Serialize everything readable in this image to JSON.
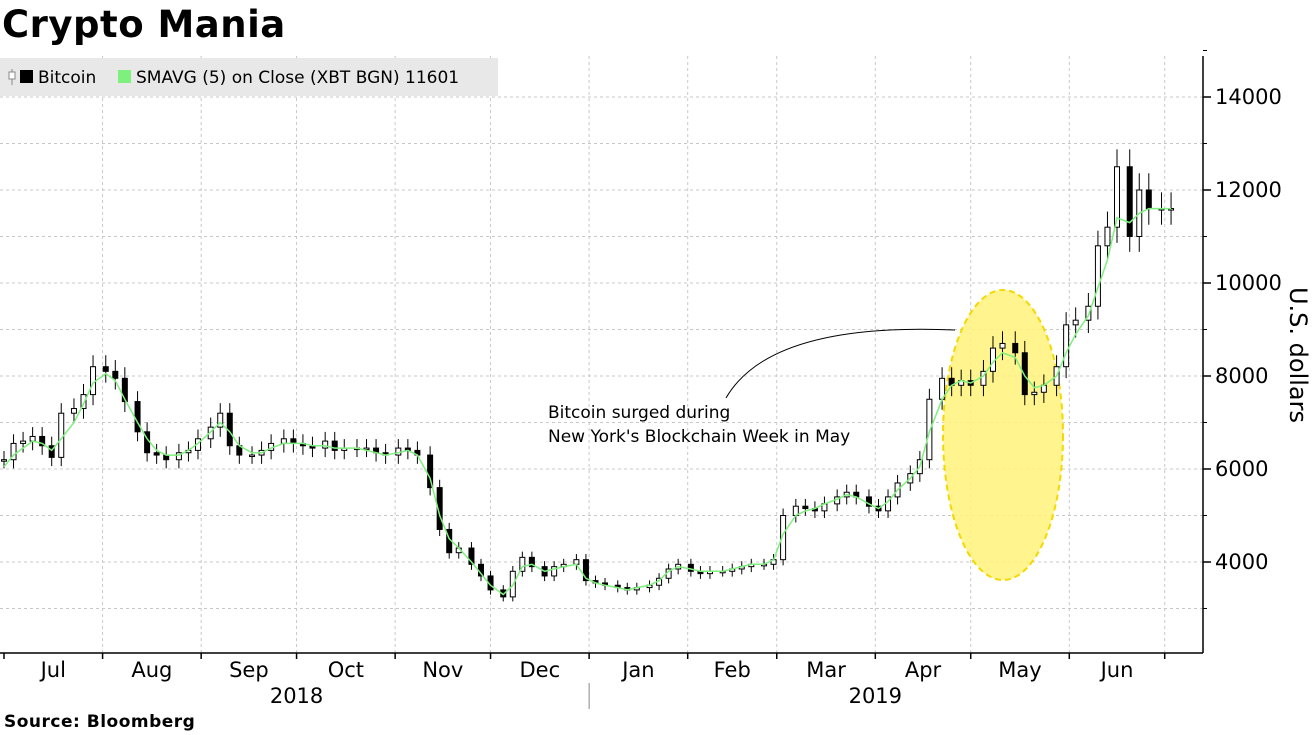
{
  "title": "Crypto Mania",
  "source": "Source: Bloomberg",
  "chart_data": {
    "type": "candlestick",
    "title": "Crypto Mania",
    "ylabel": "U.S. dollars",
    "ylim": [
      2200,
      15000
    ],
    "yticks": [
      4000,
      6000,
      8000,
      10000,
      12000,
      14000
    ],
    "grid": true,
    "legend": {
      "placement": "top-left",
      "entries": [
        {
          "label": "Bitcoin",
          "color": "#000000"
        },
        {
          "label": "SMAVG (5)  on Close (XBT BGN) 11601",
          "color": "#7ef07e"
        }
      ]
    },
    "months": [
      "Jul",
      "Aug",
      "Sep",
      "Oct",
      "Nov",
      "Dec",
      "Jan",
      "Feb",
      "Mar",
      "Apr",
      "May",
      "Jun"
    ],
    "years": [
      "2018",
      "2019"
    ],
    "annotation": {
      "lines": [
        "Bitcoin surged during",
        "New York's Blockchain Week in May"
      ],
      "highlight_color": "#fff27a"
    },
    "series": [
      {
        "name": "Bitcoin",
        "x": [
          0,
          3,
          6,
          9,
          12,
          15,
          18,
          22,
          25,
          28,
          32,
          35,
          38,
          42,
          45,
          48,
          51,
          55,
          58,
          61,
          65,
          68,
          71,
          74,
          78,
          81,
          84,
          88,
          91,
          94,
          97,
          101,
          104,
          107,
          111,
          114,
          117,
          120,
          124,
          127,
          130,
          134,
          137,
          140,
          143,
          147,
          150,
          153,
          157,
          160,
          163,
          166,
          170,
          173,
          176,
          180,
          183,
          186,
          189,
          193,
          196,
          199,
          203,
          206,
          209,
          212,
          216,
          219,
          222,
          226,
          229,
          232,
          235,
          239,
          242,
          245,
          249,
          252,
          255,
          258,
          262,
          265,
          268,
          272,
          275,
          278,
          281,
          285,
          288,
          291,
          295,
          298,
          301,
          304,
          308,
          311,
          314,
          318,
          321,
          324,
          327,
          331,
          334,
          337,
          341,
          344,
          347,
          350,
          354,
          357,
          360,
          364,
          367
        ],
        "close": [
          6200,
          6550,
          6600,
          6700,
          6500,
          6250,
          7200,
          7300,
          7600,
          8200,
          8100,
          7950,
          7450,
          6800,
          6350,
          6300,
          6200,
          6350,
          6400,
          6650,
          6900,
          7200,
          6500,
          6300,
          6300,
          6400,
          6550,
          6650,
          6550,
          6500,
          6450,
          6600,
          6400,
          6450,
          6450,
          6450,
          6350,
          6300,
          6450,
          6400,
          6300,
          5600,
          4700,
          4200,
          4300,
          3950,
          3700,
          3400,
          3250,
          3800,
          4100,
          3900,
          3700,
          3900,
          3950,
          4050,
          3600,
          3550,
          3500,
          3450,
          3400,
          3450,
          3500,
          3650,
          3850,
          3950,
          3800,
          3750,
          3800,
          3800,
          3850,
          3900,
          3950,
          3950,
          4050,
          5000,
          5200,
          5150,
          5100,
          5250,
          5400,
          5500,
          5400,
          5200,
          5100,
          5400,
          5700,
          5900,
          6200,
          7500,
          7950,
          7800,
          7900,
          7800,
          8100,
          8600,
          8700,
          8500,
          7600,
          7650,
          7800,
          8200,
          9100,
          9200,
          9500,
          10800,
          11200,
          12500,
          11000,
          12000,
          11601,
          11601,
          11601
        ],
        "sma5": [
          6050,
          6300,
          6450,
          6600,
          6550,
          6400,
          6650,
          7000,
          7400,
          7850,
          8050,
          7900,
          7500,
          7000,
          6650,
          6400,
          6300,
          6300,
          6400,
          6550,
          6800,
          7000,
          6800,
          6500,
          6350,
          6350,
          6450,
          6550,
          6550,
          6550,
          6500,
          6500,
          6450,
          6450,
          6450,
          6400,
          6350,
          6300,
          6350,
          6400,
          6300,
          5800,
          5000,
          4500,
          4300,
          4000,
          3750,
          3500,
          3300,
          3500,
          3900,
          3950,
          3800,
          3850,
          3900,
          3950,
          3650,
          3550,
          3500,
          3450,
          3400,
          3450,
          3500,
          3600,
          3800,
          3900,
          3850,
          3800,
          3800,
          3800,
          3850,
          3900,
          3950,
          3950,
          4050,
          4600,
          5000,
          5100,
          5150,
          5250,
          5350,
          5450,
          5400,
          5250,
          5150,
          5300,
          5550,
          5800,
          6050,
          6800,
          7500,
          7800,
          7900,
          7850,
          8000,
          8300,
          8500,
          8400,
          8000,
          7750,
          7800,
          8000,
          8500,
          8900,
          9300,
          9900,
          10500,
          11400,
          11300,
          11500,
          11601,
          11601,
          11601
        ]
      }
    ]
  }
}
